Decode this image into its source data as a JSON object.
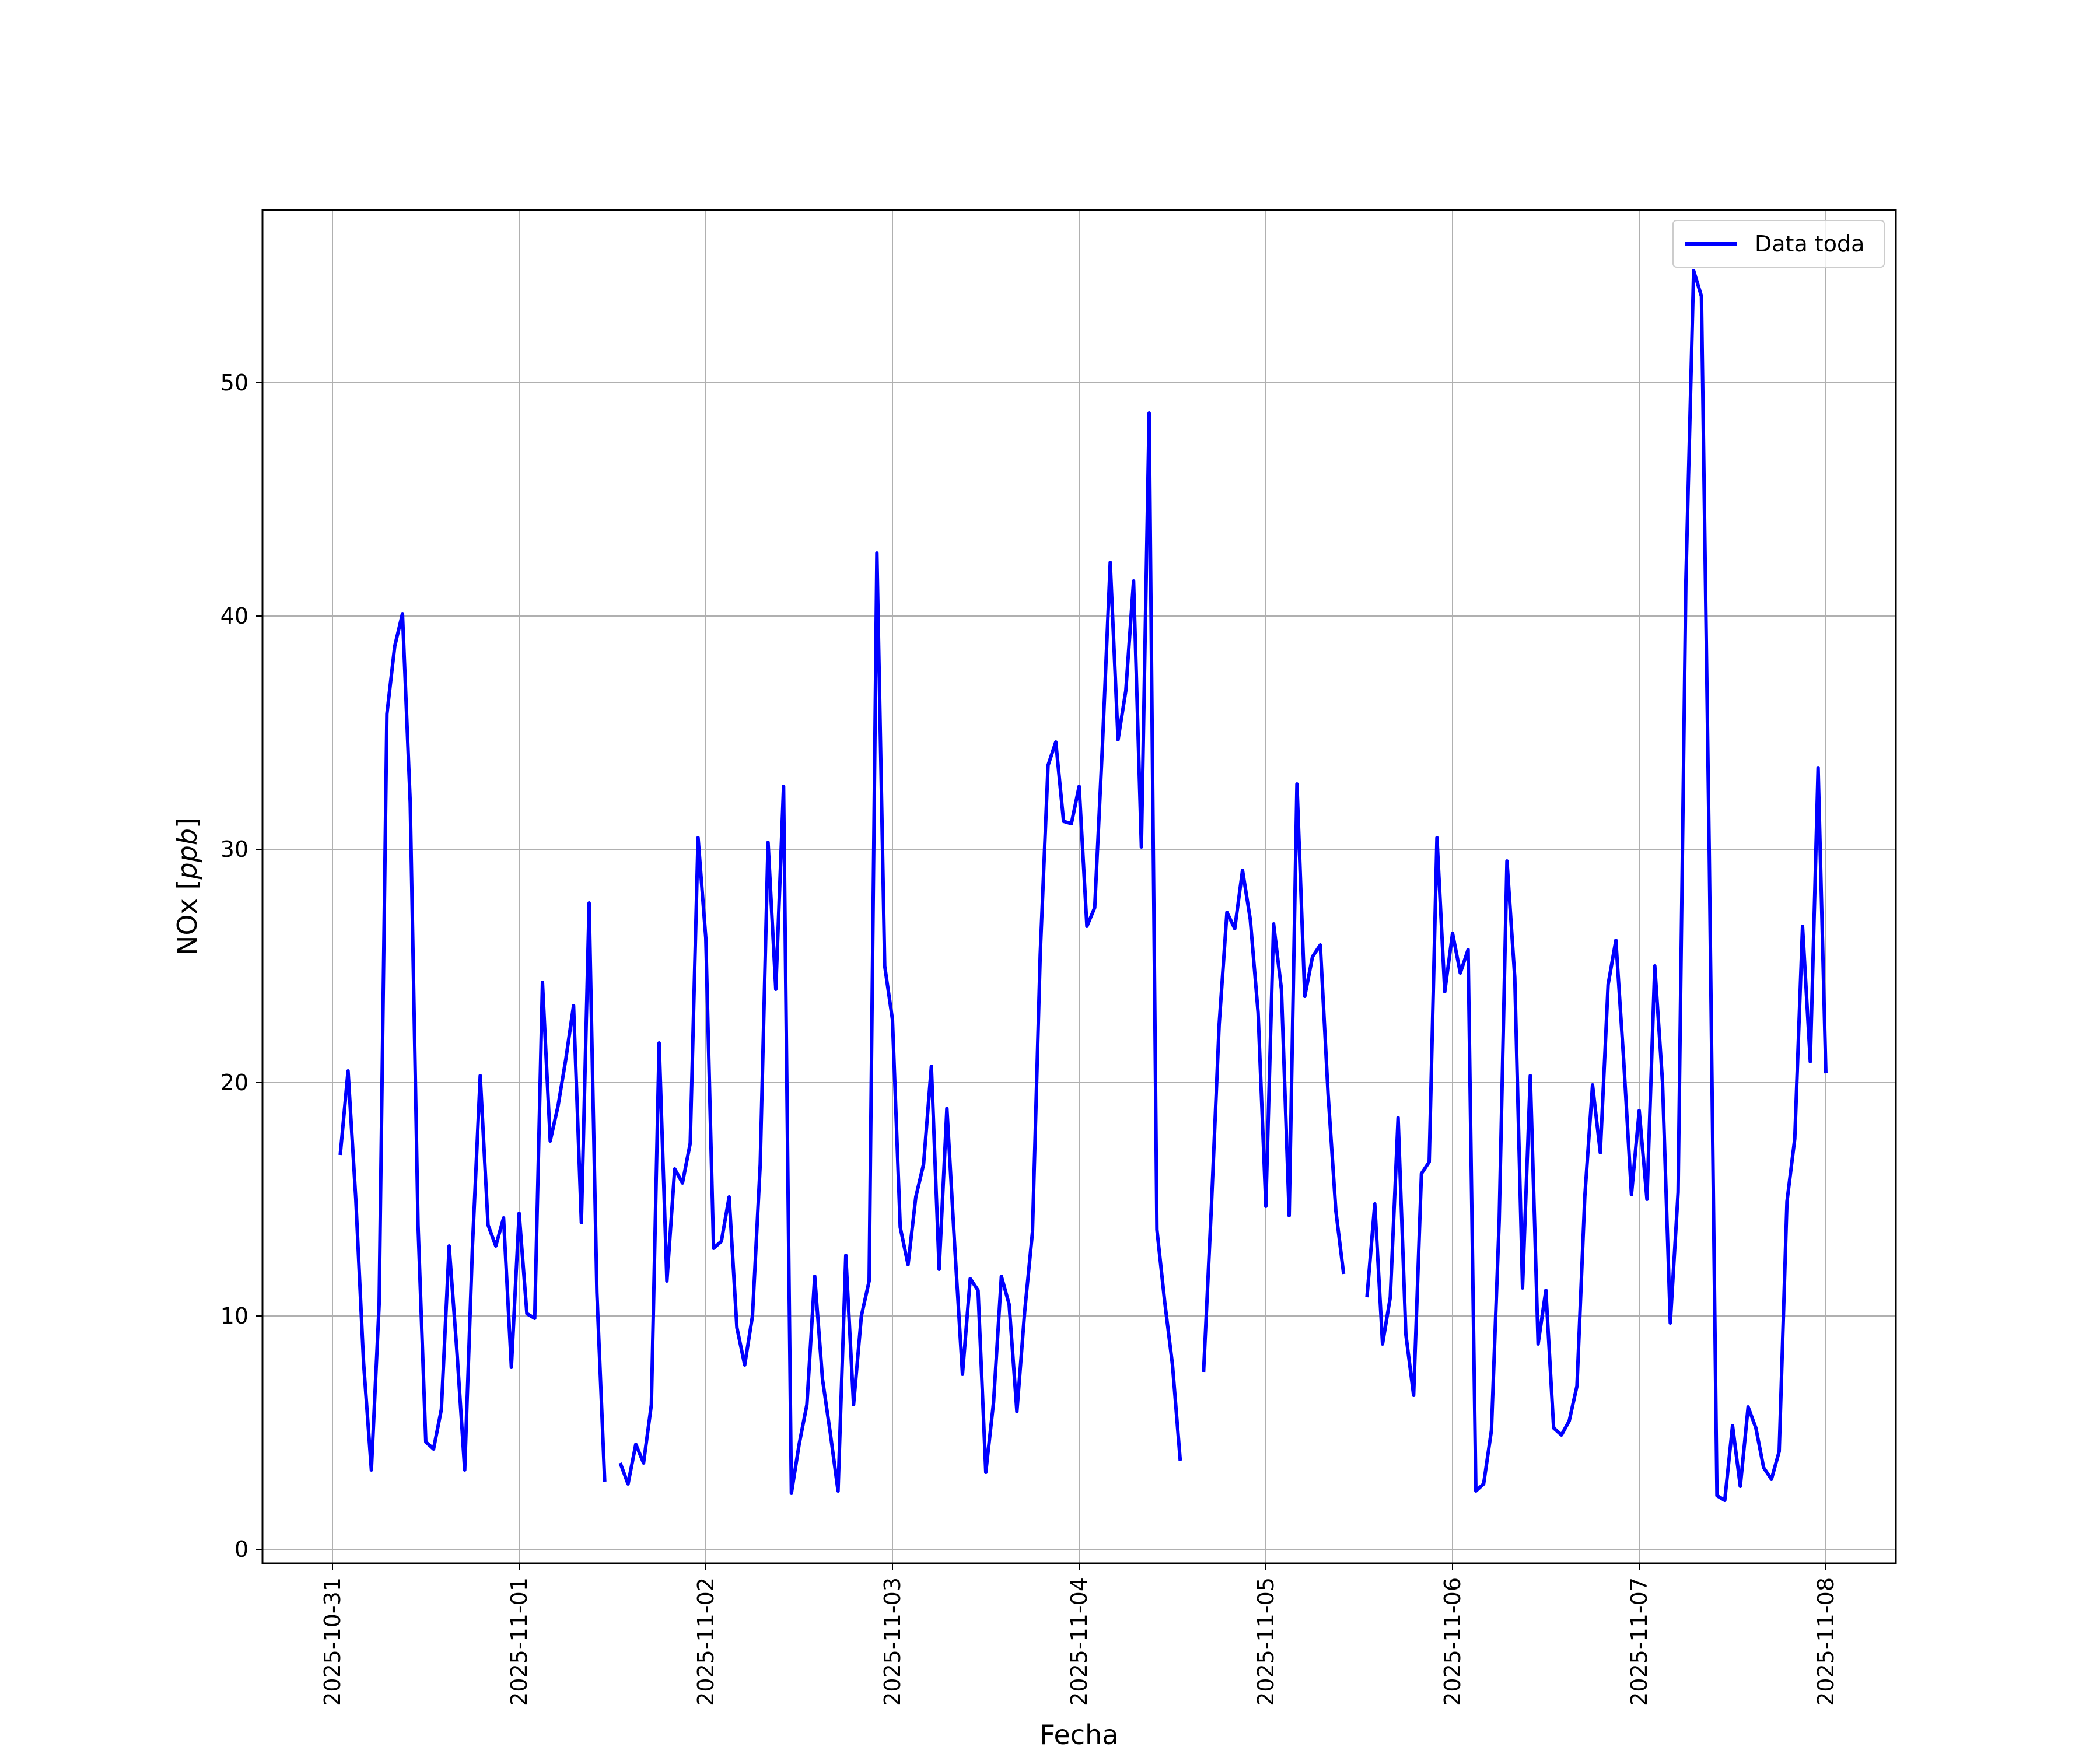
{
  "chart_data": {
    "type": "line",
    "title": "",
    "xlabel": "Fecha",
    "ylabel": "NOx [ppb]",
    "ylabel_main": "NOx [",
    "ylabel_unit": "ppb",
    "ylabel_end": "]",
    "x_scale": "date",
    "xlim": [
      "2025-10-30T15:00",
      "2025-11-08T09:00"
    ],
    "ylim": [
      -0.6,
      57.4
    ],
    "x_ticks": [
      "2025-10-31",
      "2025-11-01",
      "2025-11-02",
      "2025-11-03",
      "2025-11-04",
      "2025-11-05",
      "2025-11-06",
      "2025-11-07",
      "2025-11-08"
    ],
    "y_ticks": [
      0,
      10,
      20,
      30,
      40,
      50
    ],
    "grid": true,
    "legend_position": "top-right",
    "series": [
      {
        "name": "Data toda",
        "color": "#0000ff",
        "points": [
          [
            "2025-10-31T01:00",
            16.9
          ],
          [
            "2025-10-31T02:00",
            20.5
          ],
          [
            "2025-10-31T03:00",
            15.0
          ],
          [
            "2025-10-31T04:00",
            8.0
          ],
          [
            "2025-10-31T05:00",
            3.4
          ],
          [
            "2025-10-31T06:00",
            10.5
          ],
          [
            "2025-10-31T07:00",
            35.8
          ],
          [
            "2025-10-31T08:00",
            38.7
          ],
          [
            "2025-10-31T09:00",
            40.1
          ],
          [
            "2025-10-31T10:00",
            32.0
          ],
          [
            "2025-10-31T11:00",
            13.9
          ],
          [
            "2025-10-31T12:00",
            4.6
          ],
          [
            "2025-10-31T13:00",
            4.3
          ],
          [
            "2025-10-31T14:00",
            6.0
          ],
          [
            "2025-10-31T15:00",
            13.0
          ],
          [
            "2025-10-31T16:00",
            8.5
          ],
          [
            "2025-10-31T17:00",
            3.4
          ],
          [
            "2025-10-31T18:00",
            13.0
          ],
          [
            "2025-10-31T19:00",
            20.3
          ],
          [
            "2025-10-31T20:00",
            13.9
          ],
          [
            "2025-10-31T21:00",
            13.0
          ],
          [
            "2025-10-31T22:00",
            14.2
          ],
          [
            "2025-10-31T23:00",
            7.8
          ],
          [
            "2025-11-01T00:00",
            14.4
          ],
          [
            "2025-11-01T01:00",
            10.1
          ],
          [
            "2025-11-01T02:00",
            9.9
          ],
          [
            "2025-11-01T03:00",
            24.3
          ],
          [
            "2025-11-01T04:00",
            17.5
          ],
          [
            "2025-11-01T05:00",
            19.0
          ],
          [
            "2025-11-01T06:00",
            21.0
          ],
          [
            "2025-11-01T07:00",
            23.3
          ],
          [
            "2025-11-01T08:00",
            14.0
          ],
          [
            "2025-11-01T09:00",
            27.7
          ],
          [
            "2025-11-01T10:00",
            11.0
          ],
          [
            "2025-11-01T11:00",
            2.9
          ],
          null,
          [
            "2025-11-01T13:00",
            3.7
          ],
          [
            "2025-11-01T14:00",
            2.8
          ],
          [
            "2025-11-01T15:00",
            4.5
          ],
          [
            "2025-11-01T16:00",
            3.7
          ],
          [
            "2025-11-01T17:00",
            6.2
          ],
          [
            "2025-11-01T18:00",
            21.7
          ],
          [
            "2025-11-01T19:00",
            11.5
          ],
          [
            "2025-11-01T20:00",
            16.3
          ],
          [
            "2025-11-01T21:00",
            15.7
          ],
          [
            "2025-11-01T22:00",
            17.4
          ],
          [
            "2025-11-01T23:00",
            30.5
          ],
          [
            "2025-11-02T00:00",
            26.2
          ],
          [
            "2025-11-02T01:00",
            12.9
          ],
          [
            "2025-11-02T02:00",
            13.2
          ],
          [
            "2025-11-02T03:00",
            15.1
          ],
          [
            "2025-11-02T04:00",
            9.5
          ],
          [
            "2025-11-02T05:00",
            7.9
          ],
          [
            "2025-11-02T06:00",
            10.0
          ],
          [
            "2025-11-02T07:00",
            16.5
          ],
          [
            "2025-11-02T08:00",
            30.3
          ],
          [
            "2025-11-02T09:00",
            24.0
          ],
          [
            "2025-11-02T10:00",
            32.7
          ],
          [
            "2025-11-02T11:00",
            2.4
          ],
          [
            "2025-11-02T12:00",
            4.5
          ],
          [
            "2025-11-02T13:00",
            6.2
          ],
          [
            "2025-11-02T14:00",
            11.7
          ],
          [
            "2025-11-02T15:00",
            7.3
          ],
          [
            "2025-11-02T16:00",
            5.0
          ],
          [
            "2025-11-02T17:00",
            2.5
          ],
          [
            "2025-11-02T18:00",
            12.6
          ],
          [
            "2025-11-02T19:00",
            6.2
          ],
          [
            "2025-11-02T20:00",
            10.0
          ],
          [
            "2025-11-02T21:00",
            11.5
          ],
          [
            "2025-11-02T22:00",
            42.7
          ],
          [
            "2025-11-02T23:00",
            25.0
          ],
          [
            "2025-11-03T00:00",
            22.7
          ],
          [
            "2025-11-03T01:00",
            13.8
          ],
          [
            "2025-11-03T02:00",
            12.2
          ],
          [
            "2025-11-03T03:00",
            15.1
          ],
          [
            "2025-11-03T04:00",
            16.5
          ],
          [
            "2025-11-03T05:00",
            20.7
          ],
          [
            "2025-11-03T06:00",
            12.0
          ],
          [
            "2025-11-03T07:00",
            18.9
          ],
          [
            "2025-11-03T08:00",
            13.0
          ],
          [
            "2025-11-03T09:00",
            7.5
          ],
          [
            "2025-11-03T10:00",
            11.6
          ],
          [
            "2025-11-03T11:00",
            11.1
          ],
          [
            "2025-11-03T12:00",
            3.3
          ],
          [
            "2025-11-03T13:00",
            6.3
          ],
          [
            "2025-11-03T14:00",
            11.7
          ],
          [
            "2025-11-03T15:00",
            10.5
          ],
          [
            "2025-11-03T16:00",
            5.9
          ],
          [
            "2025-11-03T17:00",
            10.2
          ],
          [
            "2025-11-03T18:00",
            13.6
          ],
          [
            "2025-11-03T19:00",
            25.5
          ],
          [
            "2025-11-03T20:00",
            33.6
          ],
          [
            "2025-11-03T21:00",
            34.6
          ],
          [
            "2025-11-03T22:00",
            31.2
          ],
          [
            "2025-11-03T23:00",
            31.1
          ],
          [
            "2025-11-04T00:00",
            32.7
          ],
          [
            "2025-11-04T01:00",
            26.7
          ],
          [
            "2025-11-04T02:00",
            27.5
          ],
          [
            "2025-11-04T03:00",
            34.5
          ],
          [
            "2025-11-04T04:00",
            42.3
          ],
          [
            "2025-11-04T05:00",
            34.7
          ],
          [
            "2025-11-04T06:00",
            36.8
          ],
          [
            "2025-11-04T07:00",
            41.5
          ],
          [
            "2025-11-04T08:00",
            30.1
          ],
          [
            "2025-11-04T09:00",
            48.7
          ],
          [
            "2025-11-04T10:00",
            13.7
          ],
          [
            "2025-11-04T11:00",
            10.6
          ],
          [
            "2025-11-04T12:00",
            7.9
          ],
          [
            "2025-11-04T13:00",
            3.8
          ],
          null,
          [
            "2025-11-04T16:00",
            7.6
          ],
          [
            "2025-11-04T17:00",
            14.7
          ],
          [
            "2025-11-04T18:00",
            22.5
          ],
          [
            "2025-11-04T19:00",
            27.3
          ],
          [
            "2025-11-04T20:00",
            26.6
          ],
          [
            "2025-11-04T21:00",
            29.1
          ],
          [
            "2025-11-04T22:00",
            27.0
          ],
          [
            "2025-11-04T23:00",
            23.0
          ],
          [
            "2025-11-05T00:00",
            14.7
          ],
          [
            "2025-11-05T01:00",
            26.8
          ],
          [
            "2025-11-05T02:00",
            24.0
          ],
          [
            "2025-11-05T03:00",
            14.3
          ],
          [
            "2025-11-05T04:00",
            32.8
          ],
          [
            "2025-11-05T05:00",
            23.7
          ],
          [
            "2025-11-05T06:00",
            25.4
          ],
          [
            "2025-11-05T07:00",
            25.9
          ],
          [
            "2025-11-05T08:00",
            19.5
          ],
          [
            "2025-11-05T09:00",
            14.5
          ],
          [
            "2025-11-05T10:00",
            11.8
          ],
          null,
          [
            "2025-11-05T13:00",
            10.8
          ],
          [
            "2025-11-05T14:00",
            14.8
          ],
          [
            "2025-11-05T15:00",
            8.8
          ],
          [
            "2025-11-05T16:00",
            10.8
          ],
          [
            "2025-11-05T17:00",
            18.5
          ],
          [
            "2025-11-05T18:00",
            9.2
          ],
          [
            "2025-11-05T19:00",
            6.6
          ],
          [
            "2025-11-05T20:00",
            16.1
          ],
          [
            "2025-11-05T21:00",
            16.6
          ],
          [
            "2025-11-05T22:00",
            30.5
          ],
          [
            "2025-11-05T23:00",
            23.9
          ],
          [
            "2025-11-06T00:00",
            26.4
          ],
          [
            "2025-11-06T01:00",
            24.7
          ],
          [
            "2025-11-06T02:00",
            25.7
          ],
          [
            "2025-11-06T03:00",
            2.5
          ],
          [
            "2025-11-06T04:00",
            2.8
          ],
          [
            "2025-11-06T05:00",
            5.1
          ],
          [
            "2025-11-06T06:00",
            14.1
          ],
          [
            "2025-11-06T07:00",
            29.5
          ],
          [
            "2025-11-06T08:00",
            24.5
          ],
          [
            "2025-11-06T09:00",
            11.2
          ],
          [
            "2025-11-06T10:00",
            20.3
          ],
          [
            "2025-11-06T11:00",
            8.8
          ],
          [
            "2025-11-06T12:00",
            11.1
          ],
          [
            "2025-11-06T13:00",
            5.2
          ],
          [
            "2025-11-06T14:00",
            4.9
          ],
          [
            "2025-11-06T15:00",
            5.5
          ],
          [
            "2025-11-06T16:00",
            7.0
          ],
          [
            "2025-11-06T17:00",
            15.1
          ],
          [
            "2025-11-06T18:00",
            19.9
          ],
          [
            "2025-11-06T19:00",
            17.0
          ],
          [
            "2025-11-06T20:00",
            24.2
          ],
          [
            "2025-11-06T21:00",
            26.1
          ],
          [
            "2025-11-06T22:00",
            21.0
          ],
          [
            "2025-11-06T23:00",
            15.2
          ],
          [
            "2025-11-07T00:00",
            18.8
          ],
          [
            "2025-11-07T01:00",
            15.0
          ],
          [
            "2025-11-07T02:00",
            25.0
          ],
          [
            "2025-11-07T03:00",
            20.0
          ],
          [
            "2025-11-07T04:00",
            9.7
          ],
          [
            "2025-11-07T05:00",
            15.3
          ],
          [
            "2025-11-07T06:00",
            41.5
          ],
          [
            "2025-11-07T07:00",
            54.8
          ],
          [
            "2025-11-07T08:00",
            53.7
          ],
          [
            "2025-11-07T09:00",
            30.0
          ],
          [
            "2025-11-07T10:00",
            2.3
          ],
          [
            "2025-11-07T11:00",
            2.1
          ],
          [
            "2025-11-07T12:00",
            5.3
          ],
          [
            "2025-11-07T13:00",
            2.7
          ],
          [
            "2025-11-07T14:00",
            6.1
          ],
          [
            "2025-11-07T15:00",
            5.2
          ],
          [
            "2025-11-07T16:00",
            3.5
          ],
          [
            "2025-11-07T17:00",
            3.0
          ],
          [
            "2025-11-07T18:00",
            4.2
          ],
          [
            "2025-11-07T19:00",
            14.9
          ],
          [
            "2025-11-07T20:00",
            17.6
          ],
          [
            "2025-11-07T21:00",
            26.7
          ],
          [
            "2025-11-07T22:00",
            20.9
          ],
          [
            "2025-11-07T23:00",
            33.5
          ],
          [
            "2025-11-08T00:00",
            20.4
          ]
        ]
      }
    ]
  }
}
